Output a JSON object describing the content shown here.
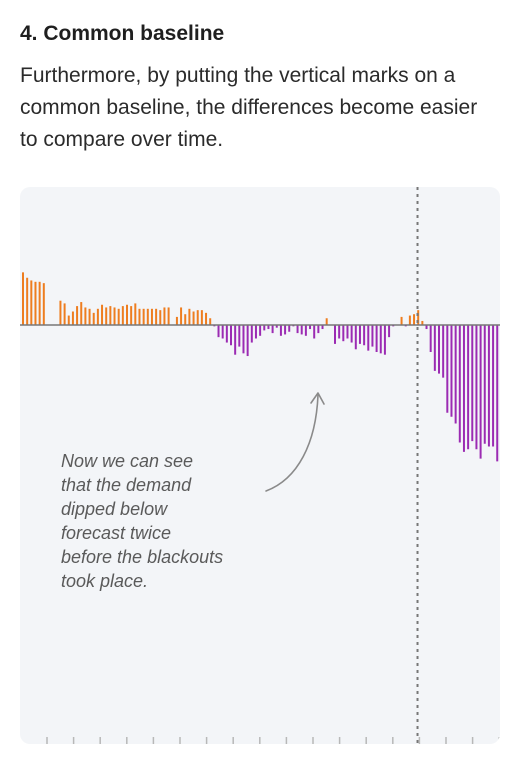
{
  "section": {
    "heading": "4. Common baseline",
    "intro": "Furthermore, by putting the vertical marks on a common baseline, the differences become easier to compare over time."
  },
  "chart_data": {
    "type": "bar",
    "baseline": 0,
    "ylim": [
      -10.2,
      4.0
    ],
    "grid": false,
    "legend": "none",
    "colors": {
      "above": "#ee7d1f",
      "below": "#9b2bb3",
      "baseline": "#777777",
      "marker": "#777777",
      "ticks": "#b8b8b8",
      "background": "#f3f5f8"
    },
    "values": [
      3.9,
      3.5,
      3.3,
      3.2,
      3.2,
      3.1,
      0.0,
      0.0,
      0.0,
      1.8,
      1.6,
      0.7,
      1.0,
      1.4,
      1.7,
      1.3,
      1.2,
      0.9,
      1.2,
      1.5,
      1.3,
      1.4,
      1.3,
      1.2,
      1.4,
      1.5,
      1.4,
      1.6,
      1.2,
      1.2,
      1.2,
      1.2,
      1.2,
      1.1,
      1.3,
      1.3,
      0.0,
      0.6,
      1.3,
      0.8,
      1.2,
      1.0,
      1.1,
      1.1,
      0.9,
      0.5,
      -0.1,
      -0.9,
      -1.0,
      -1.3,
      -1.5,
      -2.2,
      -1.6,
      -2.1,
      -2.3,
      -1.3,
      -1.0,
      -0.8,
      -0.4,
      -0.3,
      -0.6,
      -0.2,
      -0.8,
      -0.7,
      -0.5,
      -0.1,
      -0.6,
      -0.7,
      -0.8,
      -0.3,
      -1.0,
      -0.6,
      -0.3,
      0.5,
      0.0,
      -1.4,
      -1.0,
      -1.2,
      -1.0,
      -1.3,
      -1.8,
      -1.4,
      -1.5,
      -1.9,
      -1.6,
      -2.0,
      -2.1,
      -2.2,
      -0.9,
      -0.1,
      0.0,
      0.6,
      -0.1,
      0.7,
      0.8,
      1.1,
      0.3,
      -0.3,
      -2.0,
      -3.4,
      -3.6,
      -3.9,
      -6.5,
      -6.8,
      -7.3,
      -8.7,
      -9.4,
      -9.2,
      -8.6,
      -9.2,
      -9.9,
      -8.8,
      -9.0,
      -9.0,
      -10.1,
      -7.0
    ],
    "marker_index": 97,
    "tick_count": 19
  },
  "annotation": {
    "lines": [
      "Now we can see",
      "that the demand",
      "dipped below",
      "forecast twice",
      "before the blackouts",
      "took place."
    ]
  }
}
